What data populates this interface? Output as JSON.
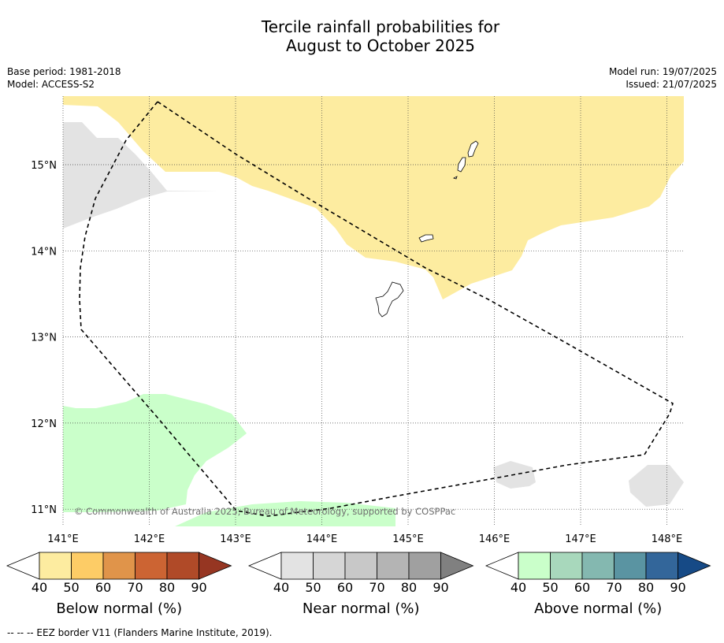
{
  "title": {
    "line1": "Tercile rainfall probabilities for",
    "line2": "August to October 2025"
  },
  "meta": {
    "base_period": "Base period: 1981-2018",
    "model": "Model: ACCESS-S2",
    "model_run": "Model run: 19/07/2025",
    "issued": "Issued: 21/07/2025"
  },
  "map": {
    "lon_ticks": [
      "141°E",
      "142°E",
      "143°E",
      "144°E",
      "145°E",
      "146°E",
      "147°E",
      "148°E"
    ],
    "lat_ticks": [
      "15°N",
      "14°N",
      "13°N",
      "12°N",
      "11°N"
    ],
    "copyright": "© Commonwealth of Australia 2025, Bureau of Meteorology, supported by COSPPac",
    "colors": {
      "below_50": "#fdeca0",
      "near_50": "#e3e3e3",
      "above_50": "#caffca",
      "eez_line": "#000000",
      "grid": "#444444"
    }
  },
  "legends": [
    {
      "label": "Below normal (%)",
      "ticks": [
        "40",
        "50",
        "60",
        "70",
        "80",
        "90"
      ],
      "colors": [
        "#ffffff",
        "#fdeca0",
        "#fdcc66",
        "#e0944a",
        "#cc6433",
        "#b04a28",
        "#963622"
      ]
    },
    {
      "label": "Near normal (%)",
      "ticks": [
        "40",
        "50",
        "60",
        "70",
        "80",
        "90"
      ],
      "colors": [
        "#ffffff",
        "#e3e3e3",
        "#d6d6d6",
        "#c8c8c8",
        "#b4b4b4",
        "#a0a0a0",
        "#808080"
      ]
    },
    {
      "label": "Above normal (%)",
      "ticks": [
        "40",
        "50",
        "60",
        "70",
        "80",
        "90"
      ],
      "colors": [
        "#ffffff",
        "#caffca",
        "#a8d8bc",
        "#84b8b0",
        "#5a94a2",
        "#33669a",
        "#164a86"
      ]
    }
  ],
  "footnote": "--  --  -- EEZ border V11 (Flanders Marine Institute, 2019)."
}
